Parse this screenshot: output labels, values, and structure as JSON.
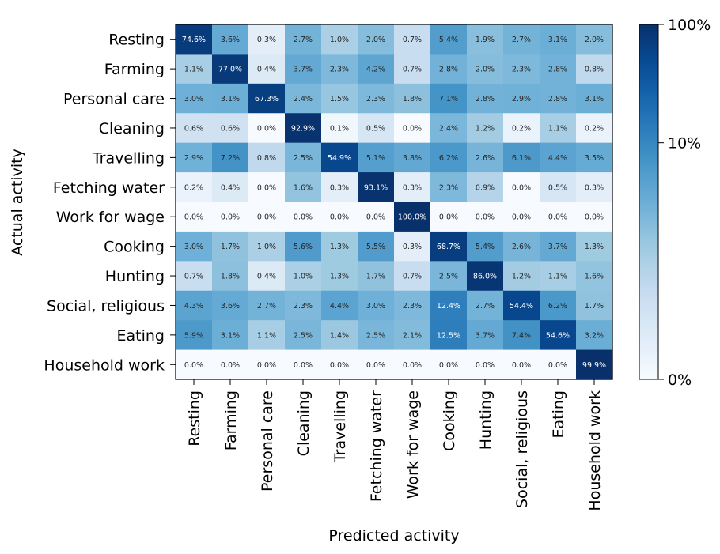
{
  "chart_data": {
    "type": "heatmap",
    "title": "",
    "xlabel": "Predicted activity",
    "ylabel": "Actual activity",
    "categories": [
      "Resting",
      "Farming",
      "Personal care",
      "Cleaning",
      "Travelling",
      "Fetching water",
      "Work for wage",
      "Cooking",
      "Hunting",
      "Social, religious",
      "Eating",
      "Household work"
    ],
    "values": [
      [
        74.6,
        3.6,
        0.3,
        2.7,
        1.0,
        2.0,
        0.7,
        5.4,
        1.9,
        2.7,
        3.1,
        2.0
      ],
      [
        1.1,
        77.0,
        0.4,
        3.7,
        2.3,
        4.2,
        0.7,
        2.8,
        2.0,
        2.3,
        2.8,
        0.8
      ],
      [
        3.0,
        3.1,
        67.3,
        2.4,
        1.5,
        2.3,
        1.8,
        7.1,
        2.8,
        2.9,
        2.8,
        3.1
      ],
      [
        0.6,
        0.6,
        0.0,
        92.9,
        0.1,
        0.5,
        0.0,
        2.4,
        1.2,
        0.2,
        1.1,
        0.2
      ],
      [
        2.9,
        7.2,
        0.8,
        2.5,
        54.9,
        5.1,
        3.8,
        6.2,
        2.6,
        6.1,
        4.4,
        3.5
      ],
      [
        0.2,
        0.4,
        0.0,
        1.6,
        0.3,
        93.1,
        0.3,
        2.3,
        0.9,
        0.0,
        0.5,
        0.3
      ],
      [
        0.0,
        0.0,
        0.0,
        0.0,
        0.0,
        0.0,
        100.0,
        0.0,
        0.0,
        0.0,
        0.0,
        0.0
      ],
      [
        3.0,
        1.7,
        1.0,
        5.6,
        1.3,
        5.5,
        0.3,
        68.7,
        5.4,
        2.6,
        3.7,
        1.3
      ],
      [
        0.7,
        1.8,
        0.4,
        1.0,
        1.3,
        1.7,
        0.7,
        2.5,
        86.0,
        1.2,
        1.1,
        1.6
      ],
      [
        4.3,
        3.6,
        2.7,
        2.3,
        4.4,
        3.0,
        2.3,
        12.4,
        2.7,
        54.4,
        6.2,
        1.7
      ],
      [
        5.9,
        3.1,
        1.1,
        2.5,
        1.4,
        2.5,
        2.1,
        12.5,
        3.7,
        7.4,
        54.6,
        3.2
      ],
      [
        0.0,
        0.0,
        0.0,
        0.0,
        0.0,
        0.0,
        0.0,
        0.0,
        0.0,
        0.0,
        0.0,
        99.9
      ]
    ],
    "value_format": "percent_1dp",
    "colormap": "Blues",
    "scale": "symlog",
    "colorbar": {
      "ticks": [
        {
          "value": 100,
          "label": "100%"
        },
        {
          "value": 10,
          "label": "10%"
        },
        {
          "value": 0,
          "label": "0%"
        }
      ]
    },
    "light_text_color": "#ffffff",
    "dark_text_color": "#262626"
  }
}
